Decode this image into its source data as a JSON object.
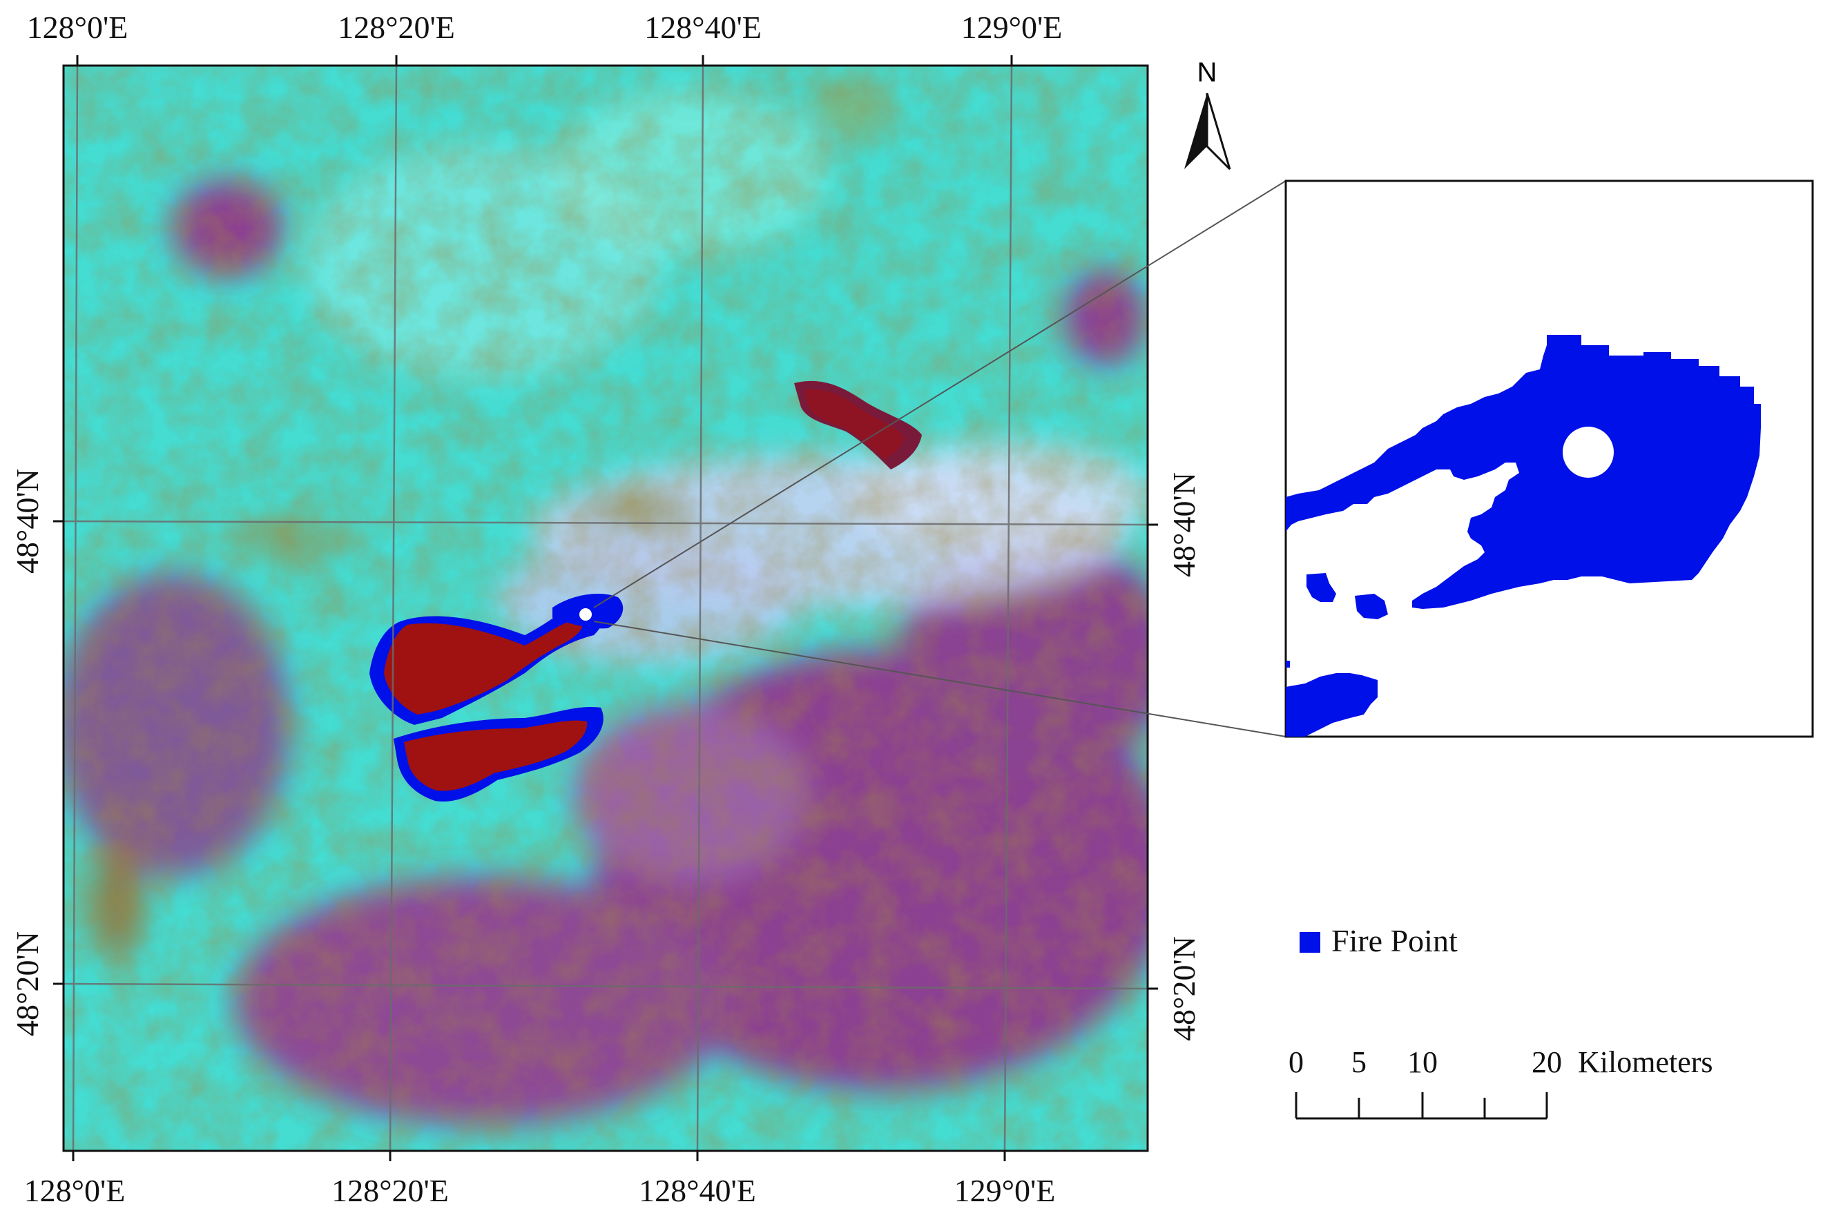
{
  "map": {
    "lon_ticks": [
      "128°0'E",
      "128°20'E",
      "128°40'E",
      "129°0'E"
    ],
    "lat_ticks": [
      "48°40'N",
      "48°20'N"
    ],
    "north_label": "N",
    "legend": {
      "label": "Fire Point",
      "color": "#0010e8"
    },
    "scale_bar": {
      "ticks": [
        "0",
        "5",
        "10",
        "20"
      ],
      "unit": "Kilometers"
    },
    "colors": {
      "burned_area": "#a01212",
      "fire_point": "#0010e8",
      "vegetation": "#3fe0d6",
      "bare_or_sparse": "#8a3f8f",
      "smoke": "#c8d8f4"
    }
  }
}
